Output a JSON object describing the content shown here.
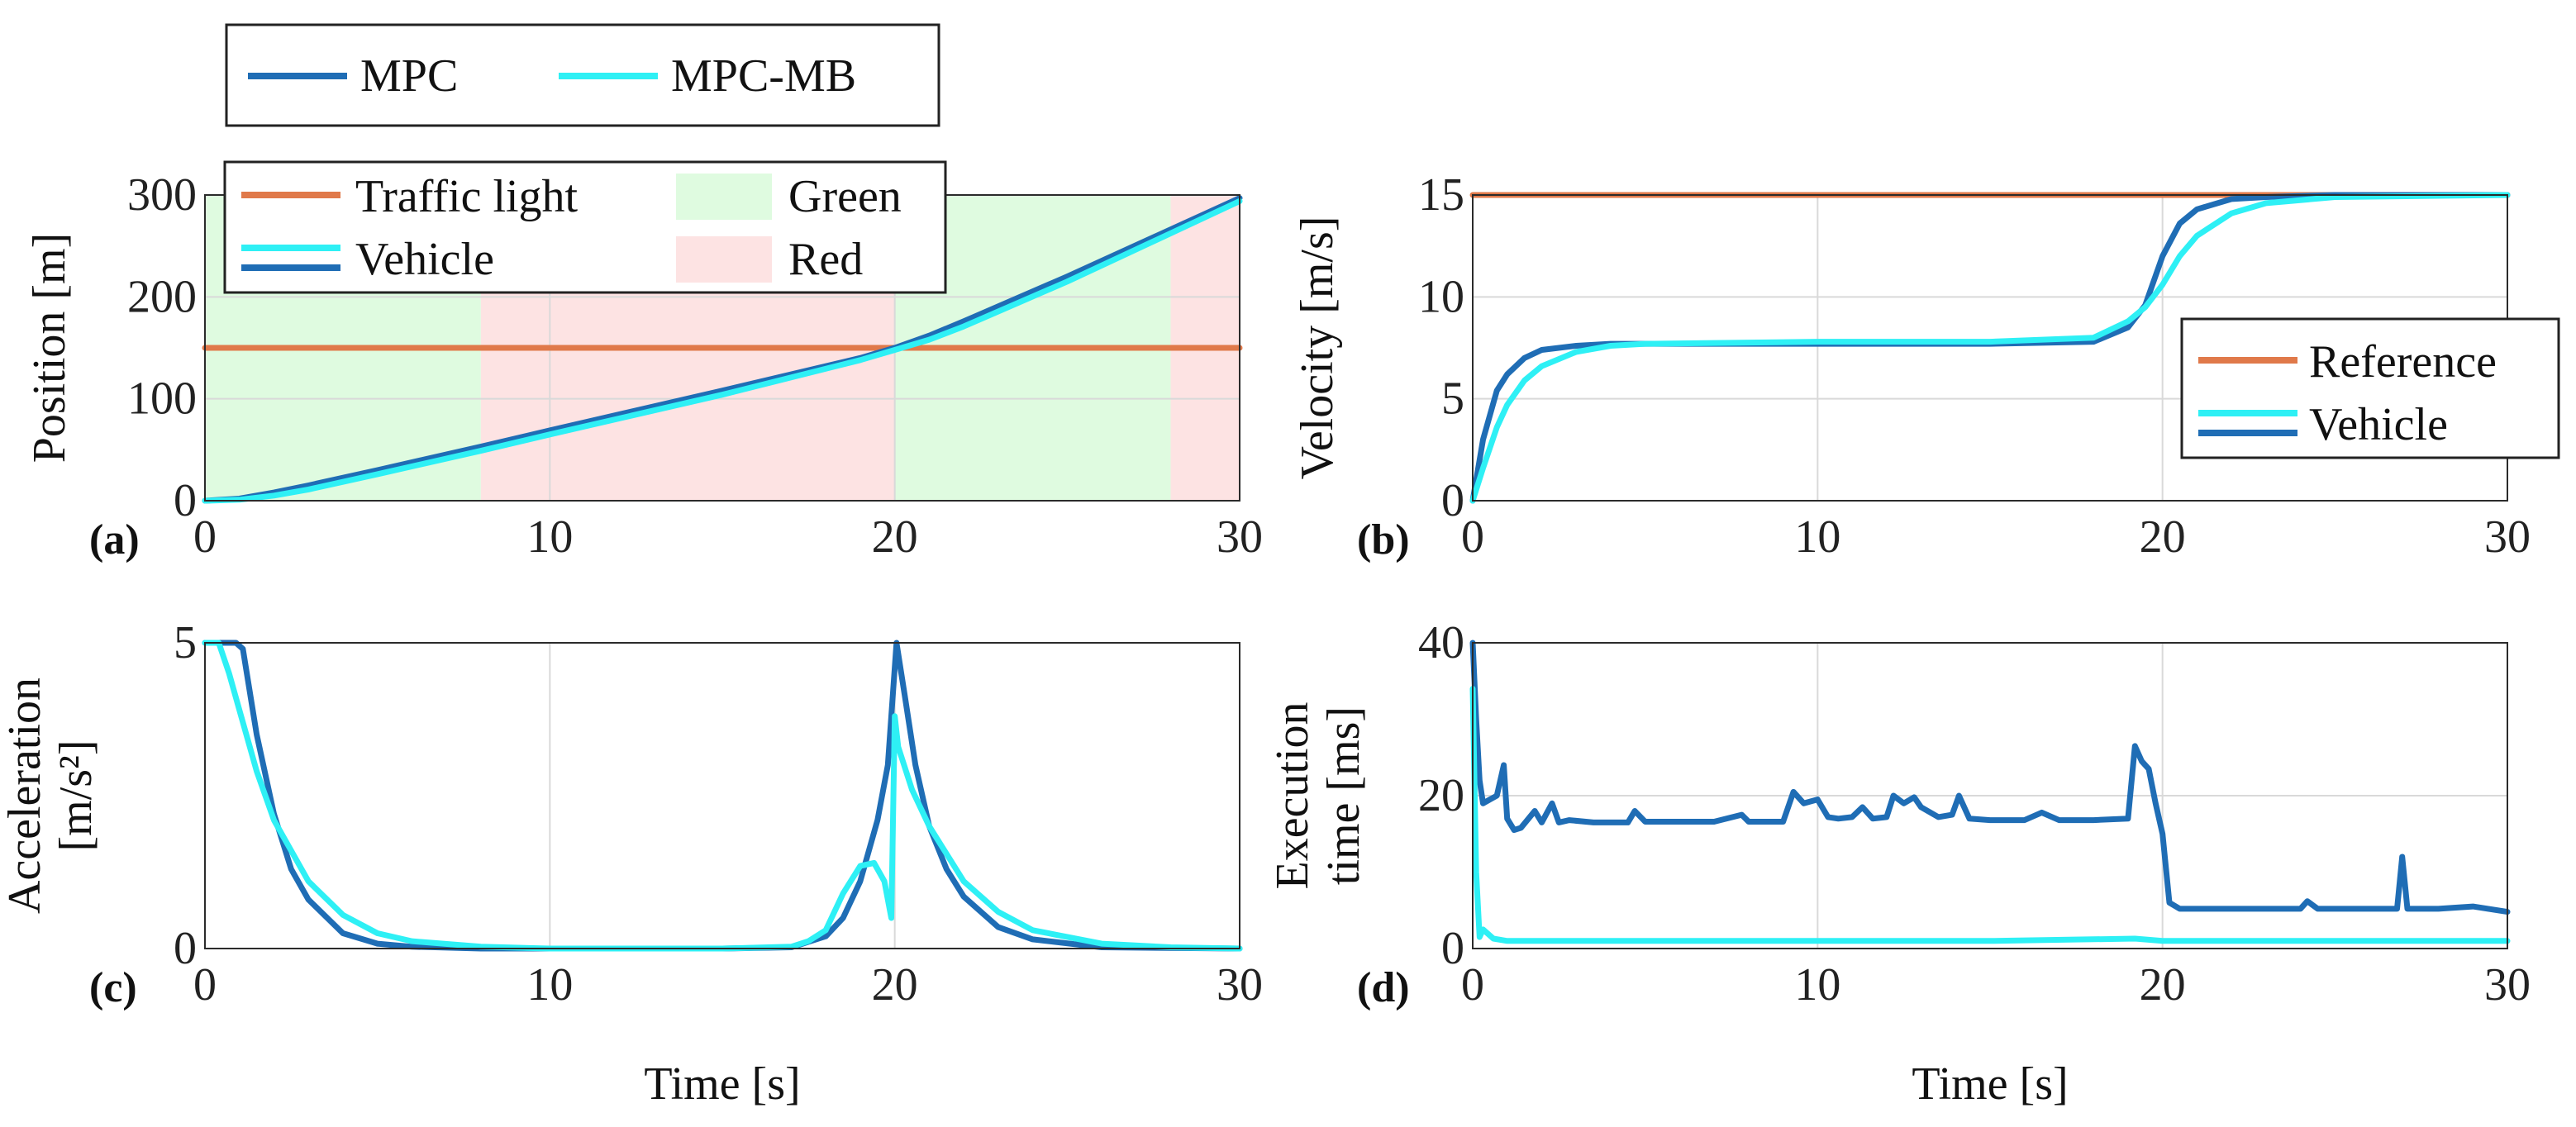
{
  "colors": {
    "mpc": "#1f6db5",
    "mpc_mb": "#2ef0f5",
    "reference": "#e0794a",
    "green_zone": "#dffbe0",
    "red_zone": "#fde3e3"
  },
  "legend_top": {
    "items": [
      "MPC",
      "MPC-MB"
    ]
  },
  "xlabel": "Time [s]",
  "chart_data": [
    {
      "panel": "(a)",
      "type": "line",
      "ylabel": "Position [m]",
      "xlim": [
        0,
        30
      ],
      "ylim": [
        0,
        300
      ],
      "xticks": [
        "0",
        "10",
        "20",
        "30"
      ],
      "yticks": [
        "0",
        "100",
        "200",
        "300"
      ],
      "legend": {
        "position": "top-left",
        "items": [
          "Traffic light",
          "Vehicle",
          "Green",
          "Red"
        ]
      },
      "shaded": [
        {
          "from": 0,
          "to": 8,
          "state": "Green"
        },
        {
          "from": 8,
          "to": 20,
          "state": "Red"
        },
        {
          "from": 20,
          "to": 28,
          "state": "Green"
        },
        {
          "from": 28,
          "to": 30,
          "state": "Red"
        }
      ],
      "series": [
        {
          "name": "Traffic light",
          "x": [
            0,
            30
          ],
          "y": [
            150,
            150
          ]
        },
        {
          "name": "MPC",
          "x": [
            0,
            1,
            2,
            3,
            5,
            8,
            10,
            15,
            19,
            20,
            21,
            22,
            25,
            30
          ],
          "y": [
            0,
            2,
            8,
            15,
            30,
            53,
            69,
            108,
            140,
            150,
            162,
            176,
            220,
            297
          ]
        },
        {
          "name": "MPC-MB",
          "x": [
            0,
            1,
            2,
            3,
            5,
            8,
            10,
            15,
            19,
            20,
            21,
            22,
            25,
            30
          ],
          "y": [
            0,
            1,
            5,
            11,
            26,
            49,
            65,
            104,
            138,
            148,
            158,
            171,
            215,
            294
          ]
        }
      ]
    },
    {
      "panel": "(b)",
      "type": "line",
      "ylabel": "Velocity [m/s]",
      "xlim": [
        0,
        30
      ],
      "ylim": [
        0,
        15
      ],
      "xticks": [
        "0",
        "10",
        "20",
        "30"
      ],
      "yticks": [
        "0",
        "5",
        "10",
        "15"
      ],
      "legend": {
        "position": "right",
        "items": [
          "Reference",
          "Vehicle"
        ]
      },
      "series": [
        {
          "name": "Reference",
          "x": [
            0,
            30
          ],
          "y": [
            15,
            15
          ]
        },
        {
          "name": "MPC",
          "x": [
            0,
            0.3,
            0.7,
            1,
            1.5,
            2,
            3,
            4,
            5,
            10,
            15,
            18,
            19,
            19.5,
            20,
            20.5,
            21,
            22,
            23,
            25,
            30
          ],
          "y": [
            0,
            3,
            5.4,
            6.2,
            7.0,
            7.4,
            7.6,
            7.7,
            7.7,
            7.7,
            7.7,
            7.8,
            8.5,
            9.6,
            12.0,
            13.6,
            14.3,
            14.8,
            14.9,
            15,
            15
          ]
        },
        {
          "name": "MPC-MB",
          "x": [
            0,
            0.3,
            0.7,
            1,
            1.5,
            2,
            3,
            4,
            5,
            10,
            15,
            18,
            19,
            19.5,
            20,
            20.5,
            21,
            22,
            23,
            25,
            30
          ],
          "y": [
            0,
            1.6,
            3.6,
            4.7,
            5.9,
            6.6,
            7.3,
            7.6,
            7.7,
            7.8,
            7.8,
            8.0,
            8.8,
            9.5,
            10.6,
            12.0,
            13.0,
            14.1,
            14.6,
            14.9,
            15
          ]
        }
      ]
    },
    {
      "panel": "(c)",
      "type": "line",
      "ylabel": "Acceleration [m/s²]",
      "xlim": [
        0,
        30
      ],
      "ylim": [
        0,
        5
      ],
      "xticks": [
        "0",
        "10",
        "20",
        "30"
      ],
      "yticks": [
        "0",
        "5"
      ],
      "series": [
        {
          "name": "MPC",
          "x": [
            0,
            0.9,
            1.1,
            1.5,
            2,
            2.5,
            3,
            4,
            5,
            6,
            8,
            10,
            15,
            17,
            18,
            18.5,
            19,
            19.5,
            19.8,
            20.05,
            20.3,
            20.6,
            21,
            21.5,
            22,
            23,
            24,
            26,
            30
          ],
          "y": [
            5,
            5,
            4.9,
            3.5,
            2.2,
            1.3,
            0.8,
            0.25,
            0.08,
            0.03,
            0,
            0,
            0,
            0.02,
            0.2,
            0.5,
            1.1,
            2.1,
            3.0,
            5.0,
            4.1,
            3.0,
            2.0,
            1.3,
            0.85,
            0.35,
            0.15,
            0.02,
            0
          ]
        },
        {
          "name": "MPC-MB",
          "x": [
            0,
            0.4,
            0.7,
            1,
            1.5,
            2,
            3,
            4,
            5,
            6,
            8,
            10,
            15,
            17,
            17.5,
            18,
            18.5,
            19,
            19.4,
            19.7,
            19.9,
            20.0,
            20.1,
            20.5,
            21,
            22,
            23,
            24,
            26,
            28,
            30
          ],
          "y": [
            5,
            5,
            4.5,
            3.9,
            2.9,
            2.1,
            1.1,
            0.55,
            0.25,
            0.12,
            0.03,
            0,
            0,
            0.03,
            0.12,
            0.3,
            0.9,
            1.35,
            1.4,
            1.1,
            0.5,
            3.8,
            3.3,
            2.6,
            2.0,
            1.1,
            0.6,
            0.3,
            0.08,
            0.02,
            0
          ]
        }
      ]
    },
    {
      "panel": "(d)",
      "type": "line",
      "ylabel": "Execution time [ms]",
      "xlim": [
        0,
        30
      ],
      "ylim": [
        0,
        40
      ],
      "xticks": [
        "0",
        "10",
        "20",
        "30"
      ],
      "yticks": [
        "0",
        "20",
        "40"
      ],
      "series": [
        {
          "name": "MPC",
          "x": [
            0,
            0.1,
            0.2,
            0.3,
            0.5,
            0.7,
            0.9,
            1.0,
            1.2,
            1.4,
            1.8,
            2.0,
            2.3,
            2.5,
            2.8,
            3.5,
            4.5,
            4.7,
            5,
            6,
            7,
            7.8,
            8,
            9,
            9.3,
            9.6,
            10,
            10.3,
            10.6,
            11,
            11.3,
            11.6,
            12,
            12.2,
            12.5,
            12.8,
            13,
            13.5,
            13.9,
            14.1,
            14.4,
            15,
            16,
            16.5,
            17,
            18,
            19,
            19.2,
            19.4,
            19.6,
            19.8,
            20,
            20.2,
            20.5,
            21,
            22,
            23,
            24,
            24.2,
            24.5,
            25,
            26,
            26.8,
            26.95,
            27.1,
            28,
            29,
            30
          ],
          "y": [
            40,
            30,
            22,
            19,
            19.5,
            20,
            24,
            17,
            15.5,
            15.8,
            18,
            16.5,
            19,
            16.5,
            16.8,
            16.5,
            16.5,
            18,
            16.6,
            16.6,
            16.6,
            17.5,
            16.6,
            16.6,
            20.5,
            19,
            19.5,
            17.2,
            17.0,
            17.2,
            18.5,
            17.0,
            17.2,
            20,
            19,
            19.8,
            18.5,
            17.2,
            17.5,
            20,
            17.0,
            16.8,
            16.8,
            17.8,
            16.8,
            16.8,
            17.0,
            26.5,
            24.5,
            23.5,
            19,
            15,
            6,
            5.2,
            5.2,
            5.2,
            5.2,
            5.2,
            6.2,
            5.2,
            5.2,
            5.2,
            5.2,
            12,
            5.2,
            5.2,
            5.5,
            4.8
          ]
        },
        {
          "name": "MPC-MB",
          "x": [
            0,
            0.1,
            0.2,
            0.3,
            0.6,
            1,
            2,
            5,
            10,
            15,
            19.2,
            20,
            25,
            30
          ],
          "y": [
            34,
            10,
            1.5,
            2.5,
            1.3,
            1.0,
            1.0,
            1.0,
            1.0,
            1.0,
            1.3,
            1.0,
            1.0,
            1.0
          ]
        }
      ]
    }
  ]
}
